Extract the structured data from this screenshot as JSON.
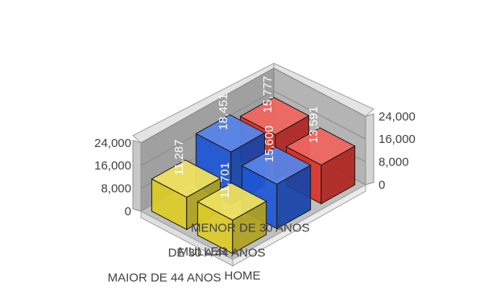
{
  "chart_data": {
    "type": "bar",
    "variant": "3d-column",
    "categories": [
      "MENOR DE 30 ANOS",
      "DE 30 A 44 ANOS",
      "MAIOR DE 44 ANOS"
    ],
    "series": [
      {
        "name": "MULLER",
        "values": [
          15777,
          18451,
          11287
        ],
        "labels": [
          "15,777",
          "18,451",
          "11,287"
        ]
      },
      {
        "name": "HOME",
        "values": [
          13591,
          15600,
          11701
        ],
        "labels": [
          "13,591",
          "15,600",
          "11,701"
        ]
      }
    ],
    "bar_colors": [
      "#e8332a",
      "#1f5be0",
      "#e8d62a"
    ],
    "ylim": [
      0,
      24000
    ],
    "yticks": [
      0,
      8000,
      16000,
      24000
    ],
    "ytick_labels": [
      "0",
      "8,000",
      "16,000",
      "24,000"
    ],
    "legend": "none",
    "grid": true
  }
}
